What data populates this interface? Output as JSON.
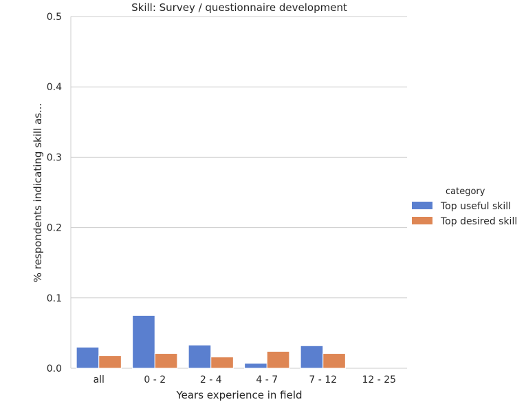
{
  "chart_data": {
    "type": "bar",
    "title": "Skill: Survey / questionnaire development",
    "xlabel": "Years experience in field",
    "ylabel": "% respondents indicating skill as...",
    "ylim": [
      0,
      0.5
    ],
    "yticks": [
      "0.0",
      "0.1",
      "0.2",
      "0.3",
      "0.4",
      "0.5"
    ],
    "grid": "horizontal",
    "categories": [
      "all",
      "0 - 2",
      "2 - 4",
      "4 - 7",
      "7 - 12",
      "12 - 25"
    ],
    "legend": {
      "title": "category",
      "placement": "right"
    },
    "series": [
      {
        "name": "Top useful skill",
        "color": "#5a7fcf",
        "values": [
          0.03,
          0.075,
          0.033,
          0.007,
          0.032,
          0.0
        ]
      },
      {
        "name": "Top desired skill",
        "color": "#de8654",
        "values": [
          0.018,
          0.021,
          0.016,
          0.024,
          0.021,
          0.0
        ]
      }
    ]
  }
}
